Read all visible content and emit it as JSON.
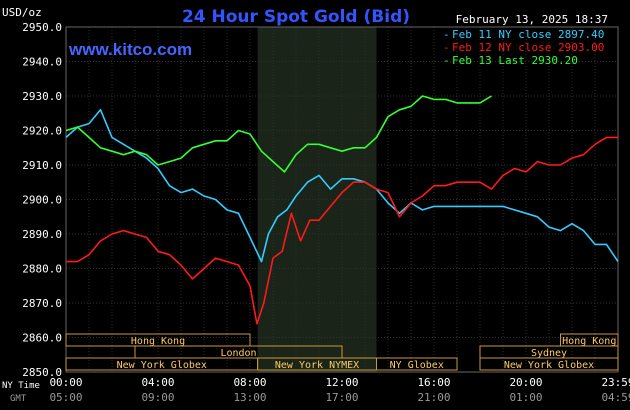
{
  "chart_data": {
    "type": "line",
    "title": "24 Hour Spot Gold (Bid)",
    "unit_label": "USD/oz",
    "timestamp": "February 13, 2025 18:37",
    "watermark": "www.kitco.com",
    "ylim": [
      2850,
      2950
    ],
    "y_ticks": [
      2950,
      2940,
      2930,
      2920,
      2910,
      2900,
      2890,
      2880,
      2870,
      2860,
      2850
    ],
    "y_tick_labels": [
      "2950.0",
      "2940.0",
      "2930.0",
      "2920.0",
      "2910.0",
      "2900.0",
      "2890.0",
      "2880.0",
      "2870.0",
      "2860.0",
      "2850.0"
    ],
    "xlim": [
      0,
      24
    ],
    "x_ticks": [
      0,
      4,
      8,
      12,
      16,
      20,
      24
    ],
    "ny_time_label": "NY Time",
    "gmt_label": "GMT",
    "ny_time_ticks": [
      "00:00",
      "04:00",
      "08:00",
      "12:00",
      "16:00",
      "20:00",
      "23:59"
    ],
    "gmt_ticks": [
      "05:00",
      "09:00",
      "13:00",
      "17:00",
      "21:00",
      "01:00",
      "04:59"
    ],
    "shaded_session": [
      8.33,
      13.5
    ],
    "grid": true,
    "legend_position": "top-right",
    "series": [
      {
        "name": "Feb 11 NY close 2897.40",
        "color": "#33ccff",
        "x": [
          0,
          0.5,
          1.0,
          1.5,
          2.0,
          2.5,
          3.0,
          3.5,
          4.0,
          4.5,
          5.0,
          5.5,
          6.0,
          6.5,
          7.0,
          7.5,
          8.0,
          8.5,
          8.8,
          9.2,
          9.6,
          10.0,
          10.5,
          11.0,
          11.5,
          12.0,
          12.5,
          13.0,
          13.5,
          14.0,
          14.5,
          15.0,
          15.5,
          16.0,
          16.5,
          17.0,
          17.5,
          18.0,
          18.5,
          19.0,
          19.5,
          20.0,
          20.5,
          21.0,
          21.5,
          22.0,
          22.5,
          23.0,
          23.5,
          24.0
        ],
        "y": [
          2918,
          2921,
          2922,
          2926,
          2918,
          2916,
          2914,
          2912,
          2909,
          2904,
          2902,
          2903,
          2901,
          2900,
          2897,
          2896,
          2889,
          2882,
          2890,
          2895,
          2897,
          2901,
          2905,
          2907,
          2903,
          2906,
          2906,
          2905,
          2903,
          2899,
          2896,
          2899,
          2897,
          2898,
          2898,
          2898,
          2898,
          2898,
          2898,
          2898,
          2897,
          2896,
          2895,
          2892,
          2891,
          2893,
          2891,
          2887,
          2887,
          2882
        ]
      },
      {
        "name": "Feb 12 NY close 2903.00",
        "color": "#ff1a1a",
        "x": [
          0,
          0.5,
          1.0,
          1.5,
          2.0,
          2.5,
          3.0,
          3.5,
          4.0,
          4.5,
          5.0,
          5.5,
          6.0,
          6.5,
          7.0,
          7.5,
          8.0,
          8.3,
          8.6,
          9.0,
          9.4,
          9.8,
          10.2,
          10.6,
          11.0,
          11.5,
          12.0,
          12.5,
          13.0,
          13.5,
          14.0,
          14.5,
          15.0,
          15.5,
          16.0,
          16.5,
          17.0,
          17.5,
          18.0,
          18.5,
          19.0,
          19.5,
          20.0,
          20.5,
          21.0,
          21.5,
          22.0,
          22.5,
          23.0,
          23.5,
          24.0
        ],
        "y": [
          2882,
          2882,
          2884,
          2888,
          2890,
          2891,
          2890,
          2889,
          2885,
          2884,
          2881,
          2877,
          2880,
          2883,
          2882,
          2881,
          2875,
          2864,
          2870,
          2883,
          2885,
          2896,
          2888,
          2894,
          2894,
          2898,
          2902,
          2905,
          2905,
          2903,
          2902,
          2895,
          2899,
          2901,
          2904,
          2904,
          2905,
          2905,
          2905,
          2903,
          2907,
          2909,
          2908,
          2911,
          2910,
          2910,
          2912,
          2913,
          2916,
          2918,
          2918
        ]
      },
      {
        "name": "Feb 13 Last 2930.20",
        "color": "#33ff33",
        "x": [
          0,
          0.5,
          1.0,
          1.5,
          2.0,
          2.5,
          3.0,
          3.5,
          4.0,
          4.5,
          5.0,
          5.5,
          6.0,
          6.5,
          7.0,
          7.5,
          8.0,
          8.5,
          9.0,
          9.5,
          10.0,
          10.5,
          11.0,
          11.5,
          12.0,
          12.5,
          13.0,
          13.5,
          14.0,
          14.5,
          15.0,
          15.5,
          16.0,
          16.5,
          17.0,
          17.5,
          18.0,
          18.5
        ],
        "y": [
          2920,
          2921,
          2918,
          2915,
          2914,
          2913,
          2914,
          2913,
          2910,
          2911,
          2912,
          2915,
          2916,
          2917,
          2917,
          2920,
          2919,
          2914,
          2911,
          2908,
          2913,
          2916,
          2916,
          2915,
          2914,
          2915,
          2915,
          2918,
          2924,
          2926,
          2927,
          2930,
          2929,
          2929,
          2928,
          2928,
          2928,
          2930
        ]
      }
    ],
    "sessions": [
      {
        "name": "Hong Kong",
        "row": 0,
        "start": 0,
        "end": 8
      },
      {
        "name": "Hong Kong",
        "row": 0,
        "start": 21.5,
        "end": 24
      },
      {
        "name": "London",
        "row": 1,
        "start": 3,
        "end": 12
      },
      {
        "name": "Sydney",
        "row": 1,
        "start": 18,
        "end": 24
      },
      {
        "name": "New York Globex",
        "row": 2,
        "start": 0,
        "end": 8.33
      },
      {
        "name": "New York NYMEX",
        "row": 2,
        "start": 8.33,
        "end": 13.5
      },
      {
        "name": "NY Globex",
        "row": 2,
        "start": 13.5,
        "end": 17
      },
      {
        "name": "New York Globex",
        "row": 2,
        "start": 18,
        "end": 24
      }
    ]
  }
}
